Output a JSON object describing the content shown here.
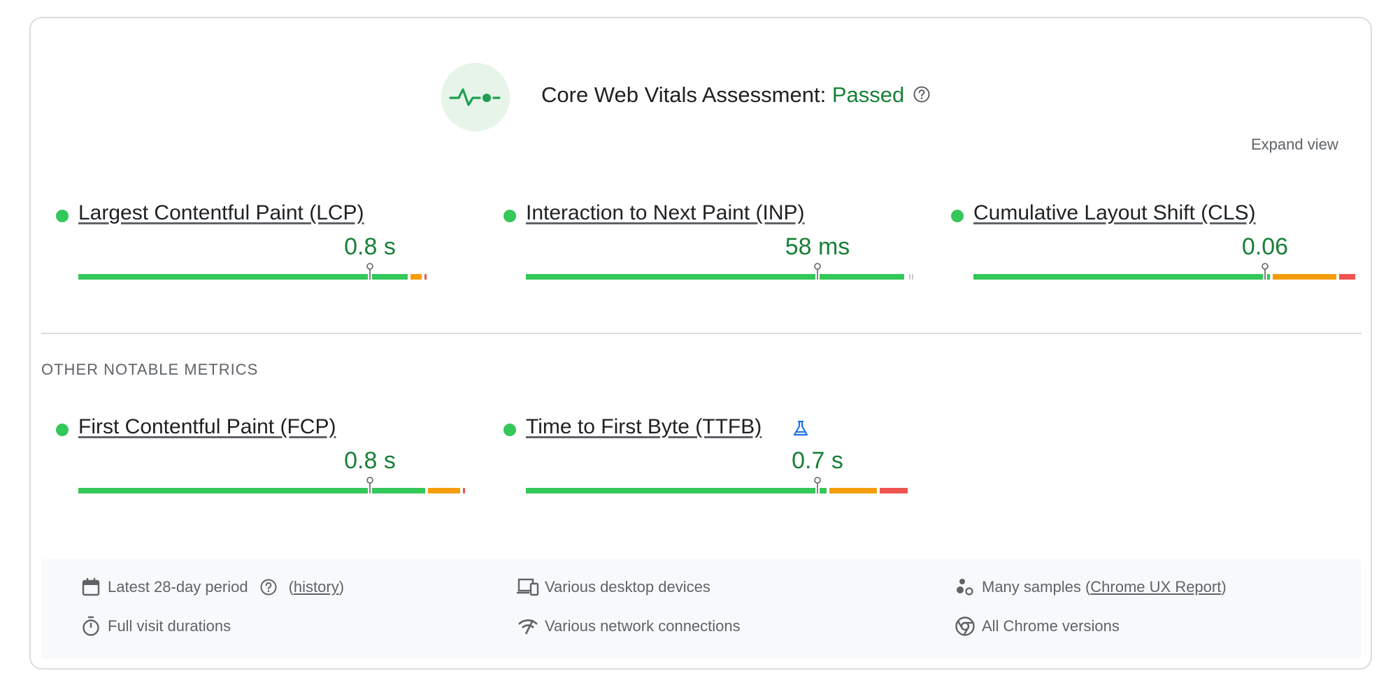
{
  "header": {
    "title_prefix": "Core Web Vitals Assessment: ",
    "status": "Passed",
    "expand_label": "Expand view"
  },
  "core_metrics": [
    {
      "label": "Largest Contentful Paint (LCP)",
      "value": "0.8 s",
      "good_pct": 0.855,
      "ni_pct": 0.035,
      "poor_pct": 0.01,
      "marker_pct": 0.75
    },
    {
      "label": "Interaction to Next Paint (INP)",
      "value": "58 ms",
      "good_pct": 0.98,
      "ni_pct": 0.0,
      "poor_pct": 0.0,
      "marker_pct": 0.75
    },
    {
      "label": "Cumulative Layout Shift (CLS)",
      "value": "0.06",
      "good_pct": 0.77,
      "ni_pct": 0.17,
      "poor_pct": 0.05,
      "marker_pct": 0.75
    }
  ],
  "other_section_title": "OTHER NOTABLE METRICS",
  "other_metrics": [
    {
      "label": "First Contentful Paint (FCP)",
      "value": "0.8 s",
      "good_pct": 0.9,
      "ni_pct": 0.09,
      "poor_pct": 0.01,
      "marker_pct": 0.75
    },
    {
      "label": "Time to First Byte (TTFB)",
      "value": "0.7 s",
      "good_pct": 0.78,
      "ni_pct": 0.13,
      "poor_pct": 0.08,
      "marker_pct": 0.75
    }
  ],
  "footer": {
    "period": "Latest 28-day period",
    "history_open": "(",
    "history": "history",
    "history_close": ")",
    "devices": "Various desktop devices",
    "samples_prefix": "Many samples (",
    "samples_link": "Chrome UX Report",
    "samples_suffix": ")",
    "durations": "Full visit durations",
    "network": "Various network connections",
    "versions": "All Chrome versions"
  },
  "colors": {
    "good": "#34c759",
    "ni": "#f59e0b",
    "poor": "#ef5350",
    "accent": "#188038"
  }
}
